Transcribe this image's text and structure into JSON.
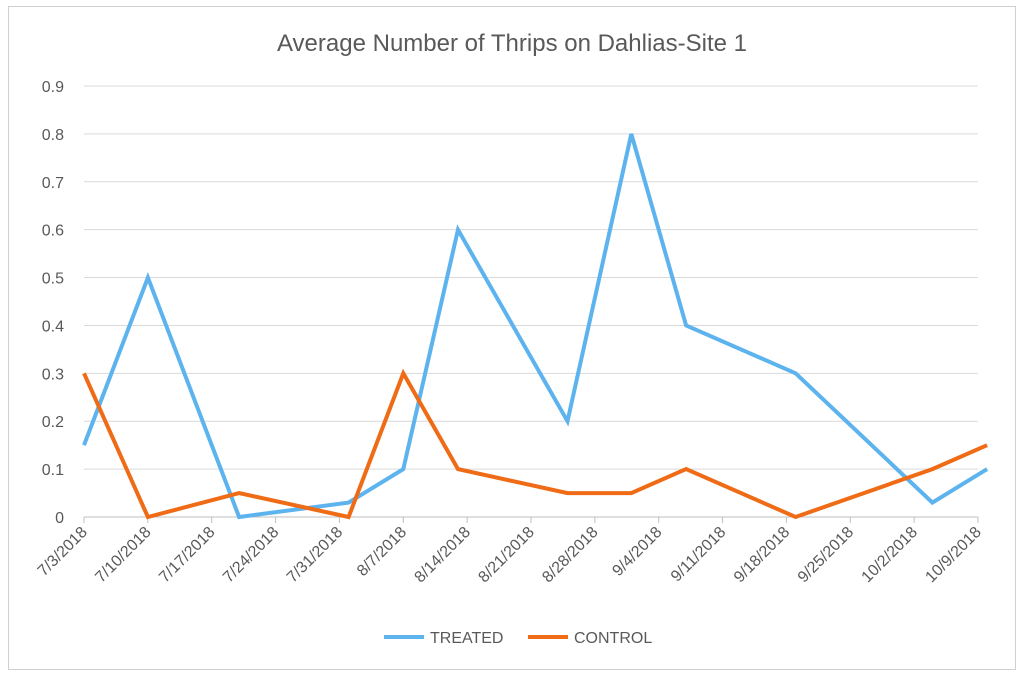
{
  "chart_data": {
    "type": "line",
    "title": "Average Number of Thrips on Dahlias-Site 1",
    "xlabel": "",
    "ylabel": "",
    "ylim": [
      0,
      0.9
    ],
    "yticks": [
      "0",
      "0.1",
      "0.2",
      "0.3",
      "0.4",
      "0.5",
      "0.6",
      "0.7",
      "0.8",
      "0.9"
    ],
    "xlim": [
      "2018-07-03",
      "2018-10-09"
    ],
    "xticks": [
      "7/3/2018",
      "7/10/2018",
      "7/17/2018",
      "7/24/2018",
      "7/31/2018",
      "8/7/2018",
      "8/14/2018",
      "8/21/2018",
      "8/28/2018",
      "9/4/2018",
      "9/11/2018",
      "9/18/2018",
      "9/25/2018",
      "10/2/2018",
      "10/9/2018"
    ],
    "grid": true,
    "legend_position": "bottom",
    "series": [
      {
        "name": "TREATED",
        "color": "#5DB3EE",
        "points": [
          {
            "x": "2018-07-03",
            "y": 0.15
          },
          {
            "x": "2018-07-10",
            "y": 0.5
          },
          {
            "x": "2018-07-20",
            "y": 0.0
          },
          {
            "x": "2018-08-01",
            "y": 0.03
          },
          {
            "x": "2018-08-07",
            "y": 0.1
          },
          {
            "x": "2018-08-13",
            "y": 0.6
          },
          {
            "x": "2018-08-25",
            "y": 0.2
          },
          {
            "x": "2018-09-01",
            "y": 0.8
          },
          {
            "x": "2018-09-07",
            "y": 0.4
          },
          {
            "x": "2018-09-19",
            "y": 0.3
          },
          {
            "x": "2018-10-04",
            "y": 0.03
          },
          {
            "x": "2018-10-10",
            "y": 0.1
          }
        ]
      },
      {
        "name": "CONTROL",
        "color": "#EF6B16",
        "points": [
          {
            "x": "2018-07-03",
            "y": 0.3
          },
          {
            "x": "2018-07-10",
            "y": 0.0
          },
          {
            "x": "2018-07-20",
            "y": 0.05
          },
          {
            "x": "2018-08-01",
            "y": 0.0
          },
          {
            "x": "2018-08-07",
            "y": 0.3
          },
          {
            "x": "2018-08-13",
            "y": 0.1
          },
          {
            "x": "2018-08-25",
            "y": 0.05
          },
          {
            "x": "2018-09-01",
            "y": 0.05
          },
          {
            "x": "2018-09-07",
            "y": 0.1
          },
          {
            "x": "2018-09-19",
            "y": 0.0
          },
          {
            "x": "2018-10-04",
            "y": 0.1
          },
          {
            "x": "2018-10-10",
            "y": 0.15
          }
        ]
      }
    ]
  }
}
